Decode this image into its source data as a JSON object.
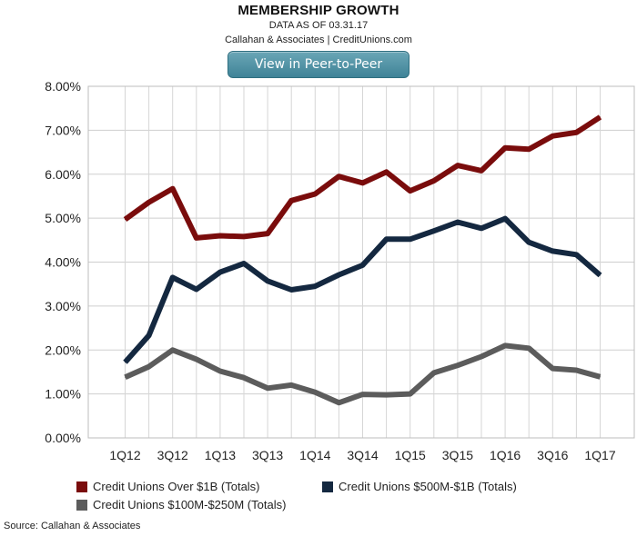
{
  "header": {
    "title": "MEMBERSHIP GROWTH",
    "subtitle": "DATA AS OF 03.31.17",
    "byline": "Callahan & Associates | CreditUnions.com",
    "button_label": "View in Peer-to-Peer"
  },
  "source": "Source: Callahan & Associates",
  "chart_data": {
    "type": "line",
    "title": "MEMBERSHIP GROWTH",
    "xlabel": "",
    "ylabel": "",
    "categories": [
      "1Q12",
      "2Q12",
      "3Q12",
      "4Q12",
      "1Q13",
      "2Q13",
      "3Q13",
      "4Q13",
      "1Q14",
      "2Q14",
      "3Q14",
      "4Q14",
      "1Q15",
      "2Q15",
      "3Q15",
      "4Q15",
      "1Q16",
      "2Q16",
      "3Q16",
      "4Q16",
      "1Q17"
    ],
    "x_tick_labels": [
      "1Q12",
      "3Q12",
      "1Q13",
      "3Q13",
      "1Q14",
      "3Q14",
      "1Q15",
      "3Q15",
      "1Q16",
      "3Q16",
      "1Q17"
    ],
    "y_tick_labels": [
      "0.00%",
      "1.00%",
      "2.00%",
      "3.00%",
      "4.00%",
      "5.00%",
      "6.00%",
      "7.00%",
      "8.00%"
    ],
    "ylim": [
      0,
      8
    ],
    "y_unit": "%",
    "grid": true,
    "legend_position": "bottom",
    "series": [
      {
        "name": "Credit Unions Over $1B (Totals)",
        "color": "#7a0c0c",
        "values": [
          4.97,
          5.36,
          5.67,
          4.55,
          4.6,
          4.58,
          4.65,
          5.4,
          5.55,
          5.95,
          5.8,
          6.05,
          5.62,
          5.85,
          6.2,
          6.08,
          6.6,
          6.57,
          6.87,
          6.95,
          7.3
        ]
      },
      {
        "name": "Credit Unions $500M-$1B (Totals)",
        "color": "#142840",
        "values": [
          1.72,
          2.33,
          3.65,
          3.38,
          3.77,
          3.97,
          3.57,
          3.37,
          3.45,
          3.71,
          3.93,
          4.52,
          4.52,
          4.71,
          4.91,
          4.77,
          4.99,
          4.45,
          4.25,
          4.17,
          3.7
        ]
      },
      {
        "name": "Credit Unions $100M-$250M (Totals)",
        "color": "#5c5c5c",
        "values": [
          1.38,
          1.62,
          2.0,
          1.79,
          1.52,
          1.37,
          1.13,
          1.2,
          1.04,
          0.8,
          0.99,
          0.98,
          1.0,
          1.48,
          1.65,
          1.85,
          2.1,
          2.04,
          1.58,
          1.54,
          1.39
        ]
      }
    ]
  }
}
